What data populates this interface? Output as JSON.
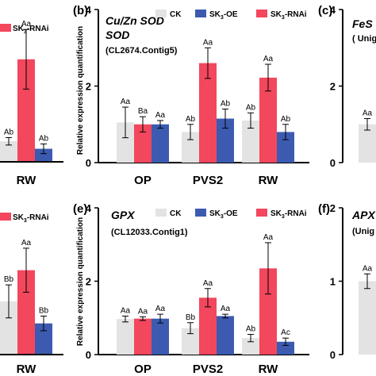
{
  "figure": {
    "colors": {
      "CK": "#e3e3e3",
      "SK3-OE": "#3c5bb0",
      "SK3-RNAi": "#f2475d",
      "err": "#000000"
    },
    "ylabel": "Relative expression quantification"
  },
  "chart_data": [
    {
      "panel": "b-left-partial",
      "type": "bar",
      "title": "",
      "subtitle": "",
      "categories": [
        "RW"
      ],
      "ylim": [
        0,
        4
      ],
      "legend": [
        "SK3-RNAi"
      ],
      "series": [
        {
          "name": "CK",
          "values": [
            0.55
          ],
          "err": [
            0.1
          ],
          "letters": [
            "Ab"
          ]
        },
        {
          "name": "SK3-RNAi",
          "values": [
            2.75
          ],
          "err": [
            0.8
          ],
          "letters": [
            "Aa"
          ]
        },
        {
          "name": "SK3-OE",
          "values": [
            0.35
          ],
          "err": [
            0.13
          ],
          "letters": [
            "Ab"
          ]
        }
      ]
    },
    {
      "panel": "(b)",
      "type": "bar",
      "title": "Cu/Zn SOD",
      "subtitle": "(CL2674.Contig5)",
      "categories": [
        "OP",
        "PVS2",
        "RW"
      ],
      "ylim": [
        0,
        4
      ],
      "yticks": [
        "0",
        "2",
        "4"
      ],
      "legend": [
        "CK",
        "SK3-OE",
        "SK3-RNAi"
      ],
      "series": [
        {
          "name": "CK",
          "values": [
            1.05,
            0.8,
            1.1
          ],
          "err": [
            0.4,
            0.2,
            0.2
          ],
          "letters": [
            "Aa",
            "Ab",
            "Ab"
          ]
        },
        {
          "name": "SK3-RNAi",
          "values": [
            1.0,
            2.6,
            2.22
          ],
          "err": [
            0.2,
            0.4,
            0.35
          ],
          "letters": [
            "Ba",
            "Aa",
            "Aa"
          ]
        },
        {
          "name": "SK3-OE",
          "values": [
            1.0,
            1.15,
            0.8
          ],
          "err": [
            0.1,
            0.25,
            0.2
          ],
          "letters": [
            "Aa",
            "Ab",
            "Ab"
          ]
        }
      ]
    },
    {
      "panel": "(c)",
      "type": "bar",
      "title": "FeS",
      "subtitle": "( Unig",
      "categories": [
        ""
      ],
      "ylim": [
        0,
        4
      ],
      "yticks": [
        "0",
        "2",
        "4"
      ],
      "series": [
        {
          "name": "CK",
          "values": [
            1.0
          ],
          "err": [
            0.15
          ],
          "letters": [
            "Aa"
          ]
        }
      ]
    },
    {
      "panel": "e-left-partial",
      "type": "bar",
      "title": "",
      "subtitle": "",
      "categories": [
        "RW"
      ],
      "ylim": [
        0,
        4
      ],
      "legend": [
        "SK3-RNAi"
      ],
      "series": [
        {
          "name": "CK",
          "values": [
            1.45
          ],
          "err": [
            0.45
          ],
          "letters": [
            "Bb"
          ]
        },
        {
          "name": "SK3-RNAi",
          "values": [
            2.3
          ],
          "err": [
            0.6
          ],
          "letters": [
            "Aa"
          ]
        },
        {
          "name": "SK3-OE",
          "values": [
            0.85
          ],
          "err": [
            0.2
          ],
          "letters": [
            "Bb"
          ]
        }
      ]
    },
    {
      "panel": "(e)",
      "type": "bar",
      "title": "GPX",
      "subtitle": "(CL12033.Contig1)",
      "categories": [
        "OP",
        "PVS2",
        "RW"
      ],
      "ylim": [
        0,
        4
      ],
      "yticks": [
        "0",
        "2",
        "4"
      ],
      "legend": [
        "CK",
        "SK3-OE",
        "SK3-RNAi"
      ],
      "series": [
        {
          "name": "CK",
          "values": [
            0.97,
            0.72,
            0.45
          ],
          "err": [
            0.08,
            0.15,
            0.1
          ],
          "letters": [
            "Aa",
            "Bb",
            "Ab"
          ]
        },
        {
          "name": "SK3-RNAi",
          "values": [
            0.98,
            1.55,
            2.35
          ],
          "err": [
            0.05,
            0.25,
            0.7
          ],
          "letters": [
            "Aa",
            "Aa",
            "Aa"
          ]
        },
        {
          "name": "SK3-OE",
          "values": [
            0.98,
            1.05,
            0.35
          ],
          "err": [
            0.12,
            0.05,
            0.1
          ],
          "letters": [
            "Aa",
            "Aa",
            "Ac"
          ]
        }
      ]
    },
    {
      "panel": "(f)",
      "type": "bar",
      "title": "APX",
      "subtitle": "(Unig",
      "categories": [
        ""
      ],
      "ylim": [
        0,
        2
      ],
      "yticks": [
        "0",
        "1",
        "2"
      ],
      "series": [
        {
          "name": "CK",
          "values": [
            1.0
          ],
          "err": [
            0.1
          ],
          "letters": [
            "Aa"
          ]
        }
      ]
    }
  ],
  "legend_text": {
    "ck": "CK",
    "sk": "SK",
    "sub3": "3",
    "oe": "-OE",
    "rnai": "-RNAi"
  },
  "labels": {
    "b": "(b)",
    "c": "(c)",
    "e": "(e)",
    "f": "(f)"
  }
}
